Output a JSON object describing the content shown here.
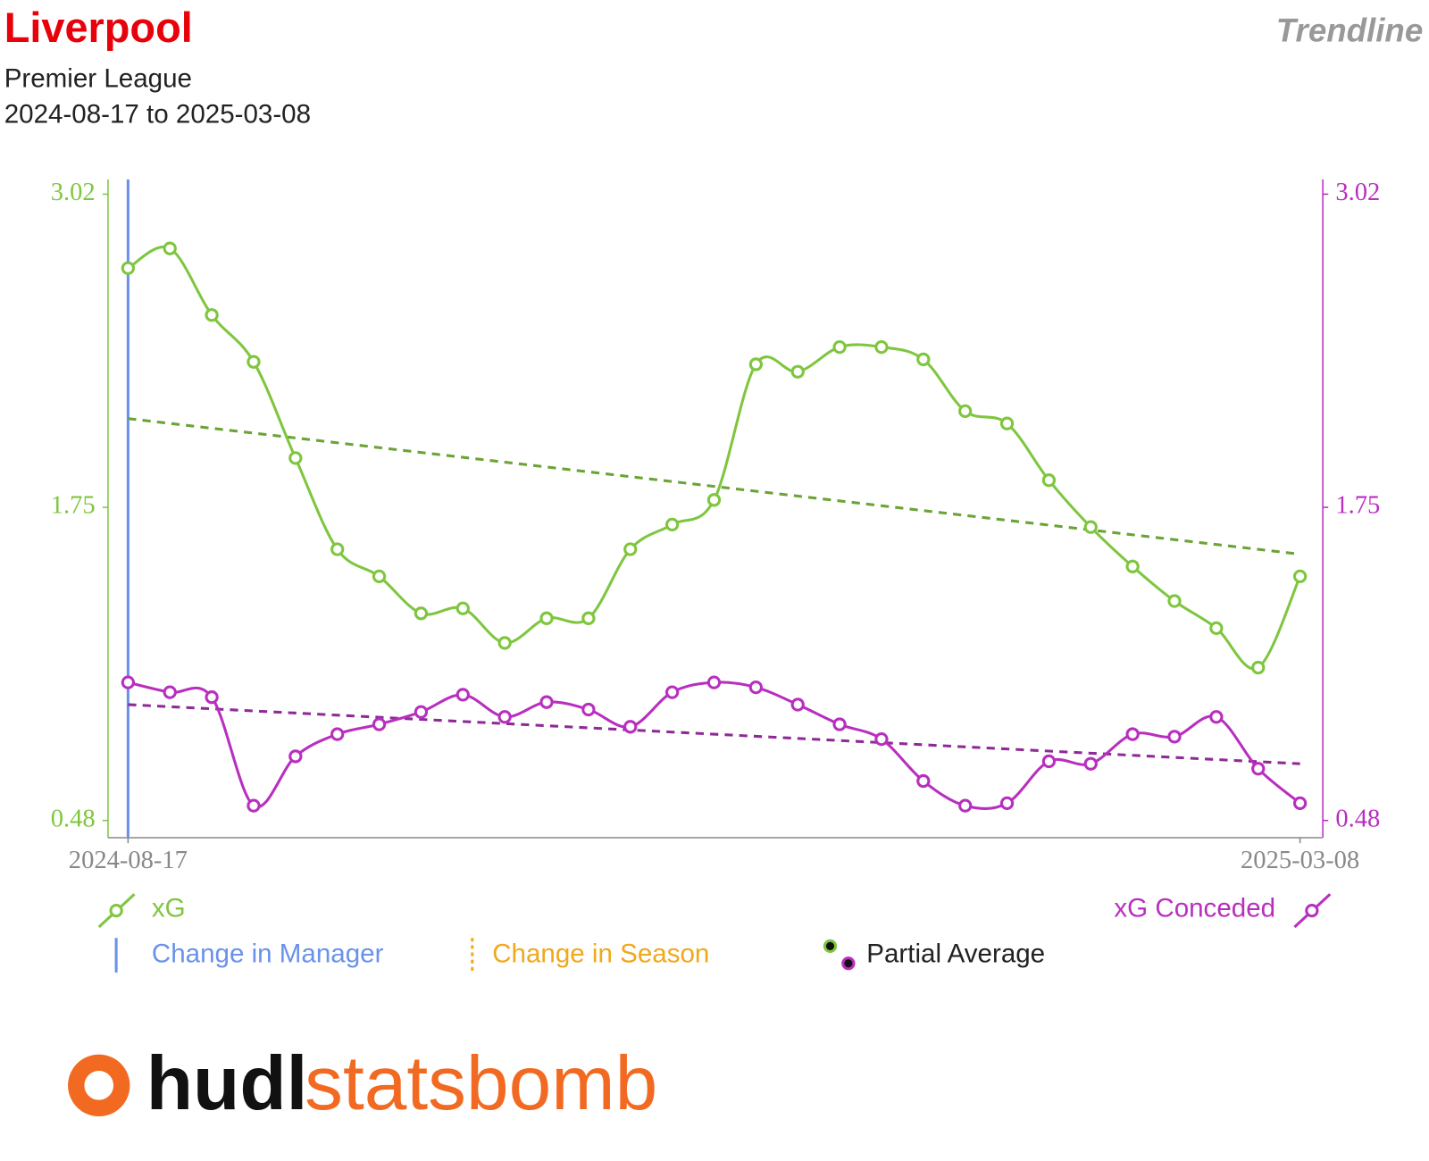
{
  "chart_data": {
    "type": "line",
    "title": "Liverpool",
    "subtitle": "Premier League",
    "date_range": "2024-08-17 to 2025-03-08",
    "corner_label": "Trendline",
    "categories": [
      "2024-08-17",
      null,
      null,
      null,
      null,
      null,
      null,
      null,
      null,
      null,
      null,
      null,
      null,
      null,
      null,
      null,
      null,
      null,
      null,
      null,
      null,
      null,
      null,
      null,
      null,
      null,
      null,
      null,
      "2025-03-08"
    ],
    "series": [
      {
        "name": "xG",
        "color": "#7fc63f",
        "trend_color": "#6aa336",
        "trend": [
          2.11,
          1.56
        ],
        "values": [
          2.72,
          2.8,
          2.53,
          2.34,
          1.95,
          1.58,
          1.47,
          1.32,
          1.34,
          1.2,
          1.3,
          1.3,
          1.58,
          1.68,
          1.78,
          2.33,
          2.3,
          2.4,
          2.4,
          2.35,
          2.14,
          2.09,
          1.86,
          1.67,
          1.51,
          1.37,
          1.26,
          1.1,
          1.47
        ]
      },
      {
        "name": "xG Conceded",
        "color": "#b82fbf",
        "trend_color": "#8e2a96",
        "axis": "y2",
        "trend": [
          0.95,
          0.71
        ],
        "values": [
          1.04,
          1.0,
          0.98,
          0.54,
          0.74,
          0.83,
          0.87,
          0.92,
          0.99,
          0.9,
          0.96,
          0.93,
          0.86,
          1.0,
          1.04,
          1.02,
          0.95,
          0.87,
          0.81,
          0.64,
          0.54,
          0.55,
          0.72,
          0.71,
          0.83,
          0.82,
          0.9,
          0.69,
          0.55
        ]
      }
    ],
    "ylim": [
      0.41,
      3.08
    ],
    "yticks": [
      0.48,
      1.75,
      3.02
    ],
    "y2lim": [
      0.41,
      3.08
    ],
    "y2ticks": [
      0.48,
      1.75,
      3.02
    ],
    "manager_changes": [
      "2024-08-17"
    ],
    "manager_color": "#6a92ea",
    "legend": {
      "manager": "Change in Manager",
      "season": "Change in Season",
      "partial": "Partial Average"
    },
    "season_color": "#f0a81c",
    "logo": {
      "part1": "hudl",
      "part2": "statsbomb"
    }
  }
}
